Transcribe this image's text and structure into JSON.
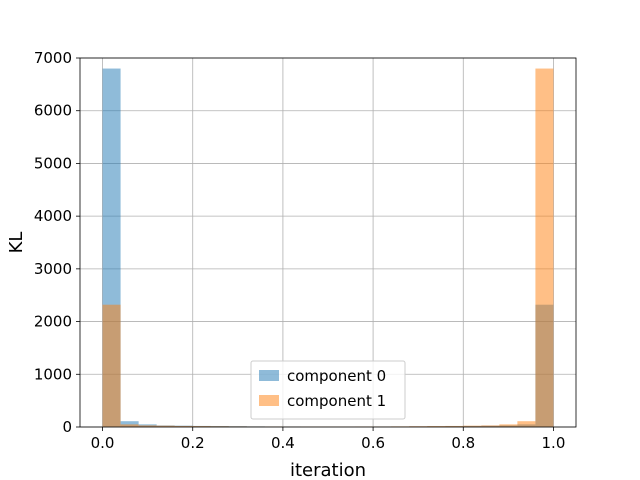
{
  "chart_data": {
    "type": "bar",
    "subtype": "overlaid-histogram",
    "xlabel": "iteration",
    "ylabel": "KL",
    "xlim": [
      -0.05,
      1.05
    ],
    "ylim": [
      0,
      7000
    ],
    "xticks": [
      0.0,
      0.2,
      0.4,
      0.6,
      0.8,
      1.0
    ],
    "xtick_labels": [
      "0.0",
      "0.2",
      "0.4",
      "0.6",
      "0.8",
      "1.0"
    ],
    "yticks": [
      0,
      1000,
      2000,
      3000,
      4000,
      5000,
      6000,
      7000
    ],
    "ytick_labels": [
      "0",
      "1000",
      "2000",
      "3000",
      "4000",
      "5000",
      "6000",
      "7000"
    ],
    "grid": true,
    "bin_edges": [
      0.0,
      0.04,
      0.08,
      0.12,
      0.16,
      0.2,
      0.24,
      0.28,
      0.32,
      0.36,
      0.4,
      0.44,
      0.48,
      0.52,
      0.56,
      0.6,
      0.64,
      0.68,
      0.72,
      0.76,
      0.8,
      0.84,
      0.88,
      0.92,
      0.96,
      1.0
    ],
    "series": [
      {
        "name": "component 0",
        "color": "#1f77b4",
        "alpha": 0.5,
        "values": [
          6800,
          110,
          50,
          30,
          25,
          20,
          18,
          15,
          12,
          10,
          10,
          8,
          8,
          8,
          8,
          10,
          10,
          12,
          15,
          18,
          20,
          25,
          30,
          50,
          2320
        ]
      },
      {
        "name": "component 1",
        "color": "#ff7f0e",
        "alpha": 0.5,
        "values": [
          2320,
          50,
          30,
          25,
          20,
          18,
          15,
          12,
          10,
          10,
          8,
          8,
          8,
          8,
          10,
          10,
          12,
          15,
          18,
          20,
          25,
          30,
          50,
          110,
          6800
        ]
      }
    ],
    "legend": {
      "position": "bottom-center",
      "entries": [
        "component 0",
        "component 1"
      ]
    }
  }
}
